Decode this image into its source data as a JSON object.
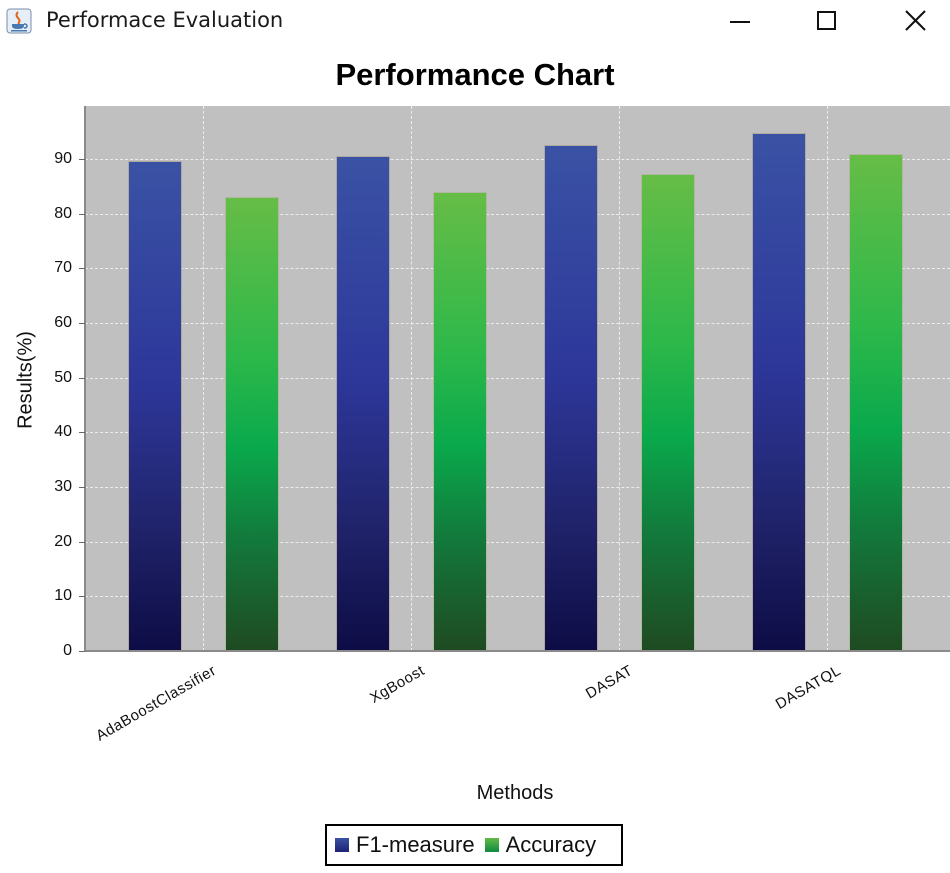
{
  "window": {
    "title": "Performace Evaluation",
    "icon": "java-cup-icon",
    "controls": {
      "minimize": "minimize-icon",
      "maximize": "maximize-icon",
      "close": "close-icon"
    }
  },
  "chart": {
    "title": "Performance Chart",
    "xlabel": "Methods",
    "ylabel": "Results(%)",
    "yticks": [
      "0",
      "10",
      "20",
      "30",
      "40",
      "50",
      "60",
      "70",
      "80",
      "90"
    ],
    "legend": [
      {
        "label": "F1-measure",
        "color": "#2d3a9c"
      },
      {
        "label": "Accuracy",
        "color": "#1fae4a"
      }
    ]
  },
  "chart_data": {
    "type": "bar",
    "title": "Performance Chart",
    "xlabel": "Methods",
    "ylabel": "Results(%)",
    "categories": [
      "AdaBoostClassifier",
      "XgBoost",
      "DASAT",
      "DASATQL"
    ],
    "series": [
      {
        "name": "F1-measure",
        "values": [
          89.7,
          90.5,
          92.5,
          94.7
        ]
      },
      {
        "name": "Accuracy",
        "values": [
          83.0,
          84.0,
          87.2,
          91.0
        ]
      }
    ],
    "ylim": [
      0,
      100
    ],
    "yticks": [
      0,
      10,
      20,
      30,
      40,
      50,
      60,
      70,
      80,
      90
    ],
    "grid": true,
    "legend_position": "bottom"
  }
}
